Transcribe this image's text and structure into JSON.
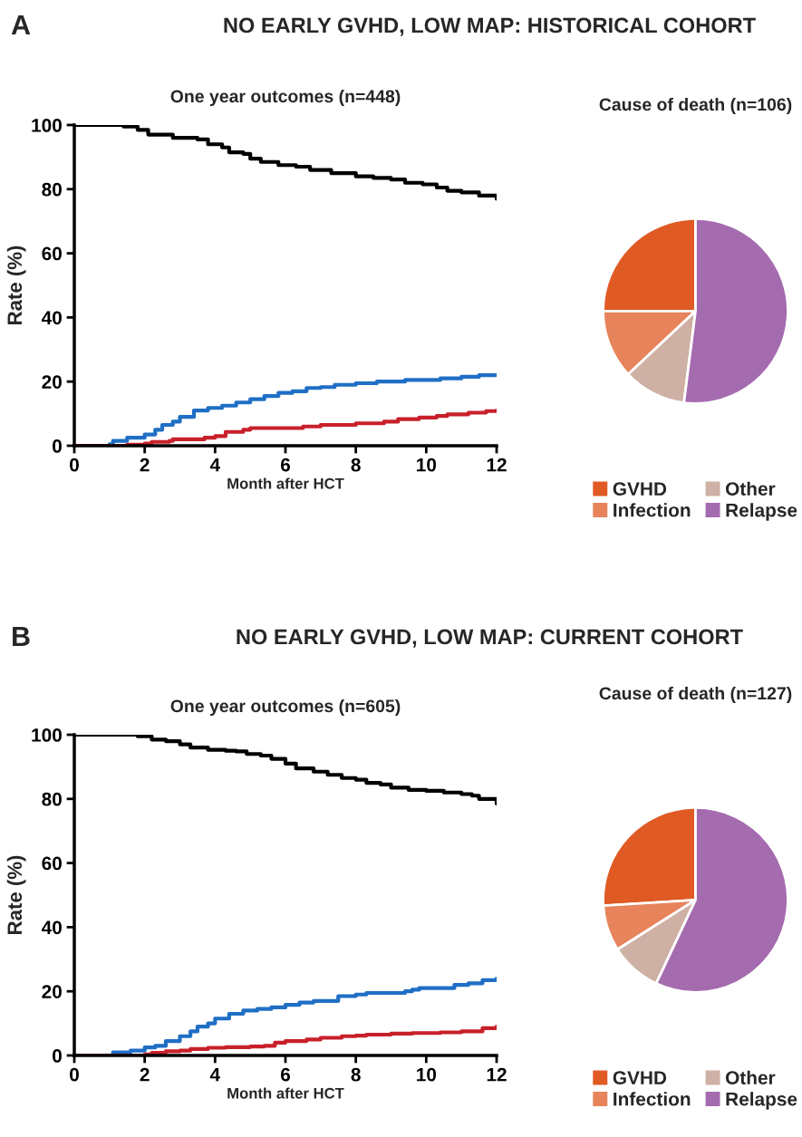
{
  "chart_data": [
    {
      "type": "step",
      "title": "One year outcomes (n=448)",
      "xlabel": "Month after HCT",
      "ylabel": "Rate (%)",
      "annotations": [
        "A",
        "NO EARLY GVHD, LOW MAP: HISTORICAL COHORT"
      ],
      "xlim": [
        0,
        12
      ],
      "xticks": [
        0,
        2,
        4,
        6,
        8,
        10,
        12
      ],
      "ylim": [
        0,
        100
      ],
      "yticks": [
        0,
        20,
        40,
        60,
        80,
        100
      ],
      "grid": false,
      "series": [
        {
          "color": "#000000",
          "x": [
            0,
            1,
            1.4,
            1.8,
            2.1,
            2.6,
            2.8,
            3.5,
            3.8,
            4.2,
            4.4,
            4.8,
            5.0,
            5.3,
            5.8,
            6.3,
            6.7,
            7.3,
            8.0,
            8.5,
            9.0,
            9.4,
            9.9,
            10.3,
            10.6,
            11.0,
            11.5,
            12
          ],
          "values": [
            100,
            100,
            99.5,
            98.5,
            97,
            97,
            96,
            95.5,
            94,
            93,
            91.5,
            91,
            89.5,
            88.5,
            87.5,
            87,
            86,
            85,
            84,
            83.5,
            83,
            82,
            81.5,
            80.5,
            79.5,
            79,
            78,
            77
          ]
        },
        {
          "color": "#1f6fc5",
          "x": [
            0,
            0.7,
            1.0,
            1.1,
            1.5,
            2.0,
            2.3,
            2.5,
            2.8,
            3.0,
            3.4,
            3.8,
            4.2,
            4.6,
            5.0,
            5.4,
            5.8,
            6.2,
            6.6,
            7.0,
            7.4,
            8.0,
            8.6,
            9.4,
            10.4,
            11.0,
            11.5,
            12
          ],
          "values": [
            0,
            0,
            0.5,
            1.5,
            2.5,
            3.5,
            5,
            6.5,
            7.5,
            9,
            11,
            11.8,
            12.5,
            13.5,
            14.5,
            15.5,
            16.5,
            17,
            18,
            18.3,
            19,
            19.5,
            20,
            20.5,
            21,
            21.5,
            22,
            22
          ]
        },
        {
          "color": "#c8202a",
          "x": [
            0,
            0.9,
            1.5,
            2.0,
            2.2,
            2.7,
            2.8,
            3.5,
            3.7,
            4.0,
            4.3,
            4.8,
            5.0,
            6.5,
            7.0,
            8.0,
            8.8,
            9.2,
            9.8,
            10.3,
            10.6,
            11.2,
            11.7,
            12
          ],
          "values": [
            0,
            0,
            0.3,
            0.7,
            1.2,
            1.5,
            2,
            2,
            2.5,
            3,
            4.3,
            5,
            5.5,
            6,
            6.5,
            7,
            7.5,
            8.3,
            8.8,
            9.3,
            9.8,
            10.3,
            10.8,
            11
          ]
        }
      ]
    },
    {
      "type": "pie",
      "title": "Cause of death (n=106)",
      "categories": [
        "GVHD",
        "Infection",
        "Other",
        "Relapse"
      ],
      "values": [
        25,
        12,
        11,
        52
      ],
      "colors": [
        "#e05a24",
        "#e7845c",
        "#ceb0a4",
        "#a56baf"
      ],
      "legend": "bottom"
    },
    {
      "type": "step",
      "title": "One year outcomes (n=605)",
      "xlabel": "Month after HCT",
      "ylabel": "Rate (%)",
      "annotations": [
        "B",
        "NO EARLY GVHD, LOW MAP: CURRENT COHORT"
      ],
      "xlim": [
        0,
        12
      ],
      "xticks": [
        0,
        2,
        4,
        6,
        8,
        10,
        12
      ],
      "ylim": [
        0,
        100
      ],
      "yticks": [
        0,
        20,
        40,
        60,
        80,
        100
      ],
      "grid": false,
      "series": [
        {
          "color": "#000000",
          "x": [
            0,
            1.4,
            1.8,
            2.2,
            2.6,
            3.0,
            3.3,
            3.8,
            4.3,
            4.6,
            4.9,
            5.3,
            5.6,
            6.0,
            6.3,
            6.8,
            7.2,
            7.6,
            8.0,
            8.3,
            8.7,
            9.0,
            9.5,
            10.0,
            10.5,
            11.0,
            11.3,
            11.5,
            12
          ],
          "values": [
            100,
            100,
            99.5,
            98.5,
            98,
            97,
            96,
            95.3,
            95,
            94.8,
            94,
            93.5,
            92.5,
            91,
            89.5,
            88.5,
            87.5,
            86.5,
            86,
            85,
            84.5,
            83.5,
            82.8,
            82.5,
            82,
            81.5,
            81,
            80,
            78.5
          ]
        },
        {
          "color": "#1f6fc5",
          "x": [
            0,
            1.0,
            1.1,
            1.6,
            2.0,
            2.3,
            2.6,
            3.0,
            3.3,
            3.5,
            3.8,
            4.0,
            4.4,
            4.8,
            5.2,
            5.6,
            6.0,
            6.4,
            6.8,
            7.2,
            7.5,
            8.0,
            8.3,
            8.8,
            9.4,
            9.6,
            9.8,
            10.4,
            10.8,
            11.2,
            11.6,
            12
          ],
          "values": [
            0,
            0,
            1,
            1.5,
            2.5,
            3,
            4.5,
            6,
            7.5,
            9,
            10,
            11.5,
            13,
            14,
            14.5,
            15,
            15.8,
            16.5,
            17,
            17,
            18.5,
            19,
            19.5,
            19.5,
            20,
            20.5,
            21,
            21,
            22,
            22.5,
            23.5,
            24
          ]
        },
        {
          "color": "#c8202a",
          "x": [
            0,
            1.1,
            2.0,
            2.2,
            2.6,
            3.0,
            3.3,
            3.8,
            4.3,
            5.0,
            5.4,
            5.7,
            6.0,
            6.6,
            7.0,
            7.6,
            8.0,
            8.3,
            9.0,
            9.6,
            10.4,
            11.0,
            11.6,
            12
          ],
          "values": [
            0,
            0,
            0.3,
            0.8,
            1.3,
            1.5,
            2,
            2.4,
            2.6,
            2.8,
            3,
            4,
            4.5,
            5,
            5.5,
            6,
            6.2,
            6.5,
            6.8,
            7,
            7.2,
            7.5,
            8.5,
            9
          ]
        }
      ]
    },
    {
      "type": "pie",
      "title": "Cause of death (n=127)",
      "categories": [
        "GVHD",
        "Infection",
        "Other",
        "Relapse"
      ],
      "values": [
        26,
        8,
        9,
        57
      ],
      "colors": [
        "#e05a24",
        "#e7845c",
        "#ceb0a4",
        "#a56baf"
      ],
      "legend": "bottom"
    }
  ]
}
